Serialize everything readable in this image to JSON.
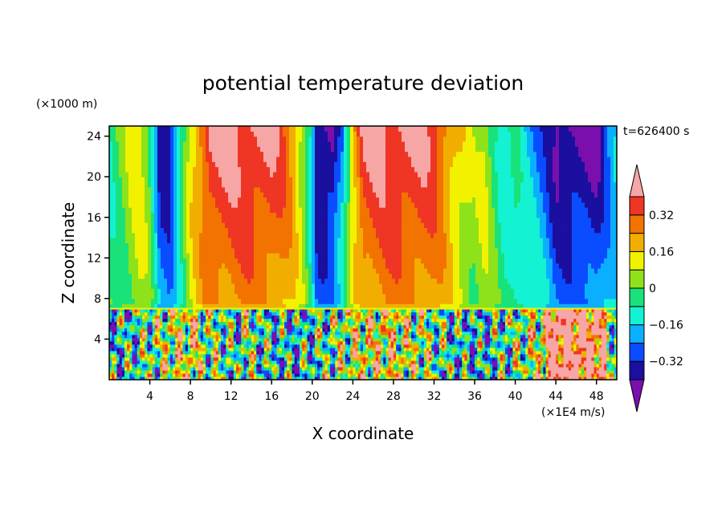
{
  "chart_data": {
    "type": "heatmap",
    "title": "potential temperature deviation",
    "xlabel": "X coordinate",
    "ylabel": "Z coordinate",
    "x_unit": "(×1E4 m/s)",
    "y_unit": "(×1000 m)",
    "time_label": "t=626400 s",
    "xlim": [
      0,
      50
    ],
    "ylim": [
      0,
      25
    ],
    "x_ticks": [
      "4",
      "8",
      "12",
      "16",
      "20",
      "24",
      "28",
      "32",
      "36",
      "40",
      "44",
      "48"
    ],
    "y_ticks": [
      "4",
      "8",
      "12",
      "16",
      "20",
      "24"
    ],
    "colorbar": {
      "levels": [
        -0.4,
        -0.32,
        -0.24,
        -0.16,
        -0.08,
        0,
        0.08,
        0.16,
        0.24,
        0.32,
        0.4
      ],
      "tick_labels": [
        "−0.32",
        "−0.16",
        "0",
        "0.16",
        "0.32"
      ],
      "colors": [
        "#7a0fae",
        "#1a0f9e",
        "#0a4cff",
        "#0ab0ff",
        "#13f2d2",
        "#19e27a",
        "#8ee21a",
        "#f2f200",
        "#f2ae00",
        "#f27300",
        "#ef3524",
        "#f7a6a6"
      ]
    },
    "upper_layer_profile": [
      {
        "x": 0.0,
        "v": -0.08
      },
      {
        "x": 1.0,
        "v": -0.02
      },
      {
        "x": 2.0,
        "v": 0.06
      },
      {
        "x": 3.0,
        "v": 0.12
      },
      {
        "x": 4.0,
        "v": 0.02
      },
      {
        "x": 5.0,
        "v": -0.36
      },
      {
        "x": 6.0,
        "v": -0.38
      },
      {
        "x": 7.0,
        "v": -0.12
      },
      {
        "x": 8.0,
        "v": 0.14
      },
      {
        "x": 9.0,
        "v": 0.3
      },
      {
        "x": 10.0,
        "v": 0.44
      },
      {
        "x": 12.0,
        "v": 0.44
      },
      {
        "x": 14.0,
        "v": 0.44
      },
      {
        "x": 16.0,
        "v": 0.42
      },
      {
        "x": 17.0,
        "v": 0.36
      },
      {
        "x": 18.0,
        "v": 0.26
      },
      {
        "x": 19.0,
        "v": 0.1
      },
      {
        "x": 19.8,
        "v": -0.1
      },
      {
        "x": 20.5,
        "v": -0.44
      },
      {
        "x": 22.0,
        "v": -0.44
      },
      {
        "x": 23.0,
        "v": -0.2
      },
      {
        "x": 24.0,
        "v": 0.2
      },
      {
        "x": 25.0,
        "v": 0.42
      },
      {
        "x": 27.0,
        "v": 0.44
      },
      {
        "x": 29.0,
        "v": 0.44
      },
      {
        "x": 31.0,
        "v": 0.42
      },
      {
        "x": 32.0,
        "v": 0.38
      },
      {
        "x": 33.0,
        "v": 0.3
      },
      {
        "x": 34.0,
        "v": 0.2
      },
      {
        "x": 35.0,
        "v": 0.12
      },
      {
        "x": 36.0,
        "v": 0.04
      },
      {
        "x": 37.0,
        "v": 0.1
      },
      {
        "x": 38.0,
        "v": -0.02
      },
      {
        "x": 39.0,
        "v": -0.14
      },
      {
        "x": 40.0,
        "v": -0.08
      },
      {
        "x": 41.0,
        "v": -0.18
      },
      {
        "x": 42.0,
        "v": -0.24
      },
      {
        "x": 43.0,
        "v": -0.3
      },
      {
        "x": 44.0,
        "v": -0.44
      },
      {
        "x": 46.0,
        "v": -0.44
      },
      {
        "x": 48.0,
        "v": -0.44
      },
      {
        "x": 49.0,
        "v": -0.3
      },
      {
        "x": 50.0,
        "v": -0.2
      }
    ],
    "lower_layer_top": 7,
    "upper_layer_bottom": 7
  }
}
